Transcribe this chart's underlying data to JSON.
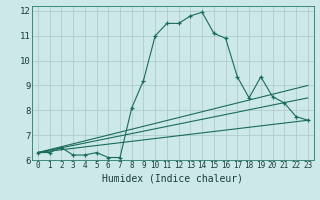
{
  "xlabel": "Humidex (Indice chaleur)",
  "background_color": "#cce8e8",
  "grid_color": "#b0cccc",
  "line_color": "#1a6b5a",
  "xlim": [
    -0.5,
    23.5
  ],
  "ylim": [
    6,
    12.2
  ],
  "xticks": [
    0,
    1,
    2,
    3,
    4,
    5,
    6,
    7,
    8,
    9,
    10,
    11,
    12,
    13,
    14,
    15,
    16,
    17,
    18,
    19,
    20,
    21,
    22,
    23
  ],
  "yticks": [
    6,
    7,
    8,
    9,
    10,
    11,
    12
  ],
  "main_line": {
    "x": [
      0,
      1,
      2,
      3,
      4,
      5,
      6,
      7,
      8,
      9,
      10,
      11,
      12,
      13,
      14,
      15,
      16,
      17,
      18,
      19,
      20,
      21,
      22,
      23
    ],
    "y": [
      6.3,
      6.3,
      6.5,
      6.2,
      6.2,
      6.3,
      6.1,
      6.1,
      8.1,
      9.2,
      11.0,
      11.5,
      11.5,
      11.8,
      11.95,
      11.1,
      10.9,
      9.35,
      8.5,
      9.35,
      8.55,
      8.3,
      7.75,
      7.6
    ]
  },
  "trend_lines": [
    {
      "x": [
        0,
        23
      ],
      "y": [
        6.3,
        9.0
      ]
    },
    {
      "x": [
        0,
        23
      ],
      "y": [
        6.3,
        8.5
      ]
    },
    {
      "x": [
        0,
        23
      ],
      "y": [
        6.3,
        7.6
      ]
    }
  ]
}
